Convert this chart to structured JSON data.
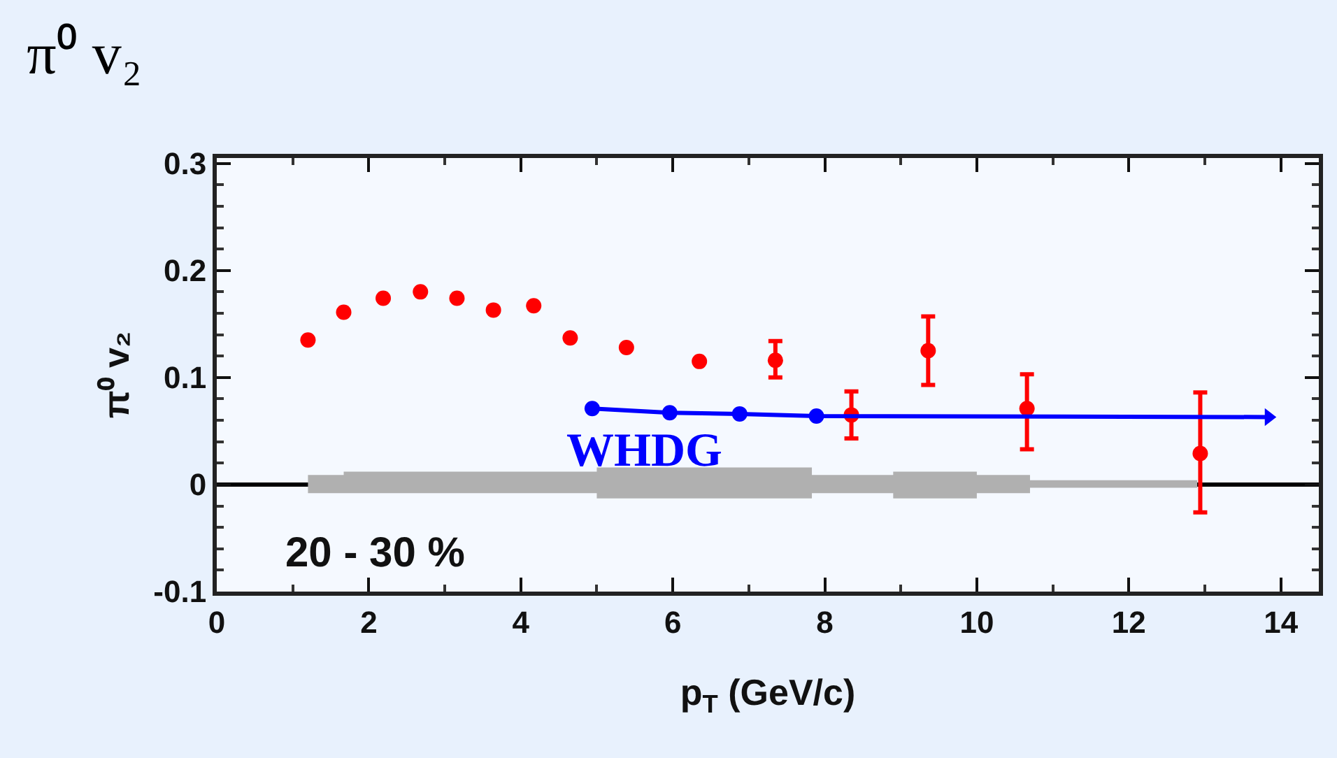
{
  "chart_data": {
    "type": "scatter",
    "title": "π⁰ v₂",
    "xlabel": "p$_{T}$ (GeV/c)",
    "ylabel": "π⁰ v₂",
    "xlim": [
      0,
      14.5
    ],
    "xticks": [
      0,
      2,
      4,
      6,
      8,
      10,
      12,
      14
    ],
    "ylim": [
      -0.1,
      0.305
    ],
    "yticks": [
      -0.1,
      0,
      0.1,
      0.2,
      0.3
    ],
    "grid": false,
    "marker": "circle",
    "series": [
      {
        "type": "area",
        "color": "#b0b0b0",
        "x": [
          1.2,
          1.67,
          1.67,
          5.0,
          5.0,
          7.83,
          7.83,
          8.9,
          8.9,
          10.0,
          10.0,
          10.7,
          10.7,
          12.9
        ],
        "values": [
          null,
          null,
          null,
          null,
          null,
          null,
          null,
          null,
          null,
          null,
          null,
          null,
          null,
          null
        ],
        "upper": [
          0.009,
          0.009,
          0.012,
          0.012,
          0.016,
          0.016,
          0.009,
          0.009,
          0.012,
          0.012,
          0.009,
          0.009,
          0.004,
          0.004
        ],
        "lower": [
          -0.008,
          -0.008,
          -0.008,
          -0.008,
          -0.013,
          -0.013,
          -0.008,
          -0.008,
          -0.013,
          -0.013,
          -0.008,
          -0.008,
          -0.003,
          -0.003
        ]
      },
      {
        "color": "#ff0000",
        "x": [
          1.2,
          1.67,
          2.19,
          2.68,
          3.16,
          3.64,
          4.17,
          4.65,
          5.39,
          6.35,
          7.35,
          8.35,
          9.36,
          10.66,
          12.94
        ],
        "values": [
          0.135,
          0.161,
          0.174,
          0.18,
          0.174,
          0.163,
          0.167,
          0.137,
          0.128,
          0.115,
          0.116,
          0.065,
          0.125,
          0.071,
          0.029
        ],
        "errors": [
          null,
          null,
          null,
          null,
          null,
          null,
          null,
          null,
          null,
          null,
          [
            0.1,
            0.134
          ],
          [
            0.043,
            0.087
          ],
          [
            0.093,
            0.157
          ],
          [
            0.033,
            0.103
          ],
          [
            -0.026,
            0.086
          ]
        ]
      },
      {
        "type": "line",
        "name": "WHDG",
        "color": "#0000ff",
        "x": [
          4.94,
          5.96,
          6.88,
          7.89,
          13.84
        ],
        "values": [
          0.071,
          0.067,
          0.066,
          0.064,
          0.063
        ]
      }
    ],
    "ref_lines": [
      {
        "axis": "y",
        "value": 0,
        "color": "#000000"
      }
    ],
    "annotations": [
      "20 - 30 %"
    ]
  }
}
